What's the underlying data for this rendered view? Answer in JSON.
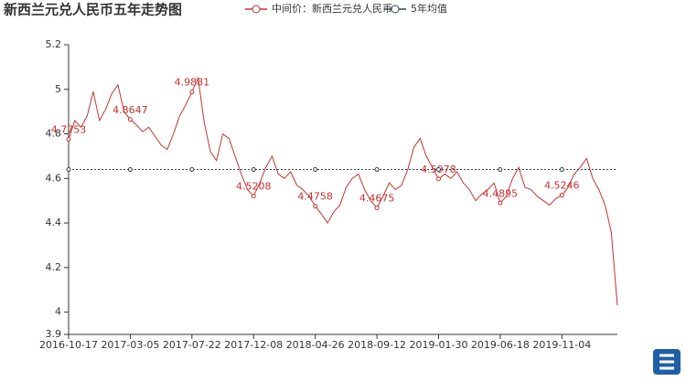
{
  "chart_data": {
    "type": "line",
    "title": "新西兰元兑人民币五年走势图",
    "categories": [
      "2016-10-17",
      null,
      null,
      null,
      null,
      null,
      null,
      null,
      null,
      null,
      "2017-03-05",
      null,
      null,
      null,
      null,
      null,
      null,
      null,
      null,
      null,
      "2017-07-22",
      null,
      null,
      null,
      null,
      null,
      null,
      null,
      null,
      null,
      "2017-12-08",
      null,
      null,
      null,
      null,
      null,
      null,
      null,
      null,
      null,
      "2018-04-26",
      null,
      null,
      null,
      null,
      null,
      null,
      null,
      null,
      null,
      "2018-09-12",
      null,
      null,
      null,
      null,
      null,
      null,
      null,
      null,
      null,
      "2019-01-30",
      null,
      null,
      null,
      null,
      null,
      null,
      null,
      null,
      null,
      "2019-06-18",
      null,
      null,
      null,
      null,
      null,
      null,
      null,
      null,
      null,
      "2019-11-04",
      null,
      null,
      null,
      null,
      null,
      null,
      null,
      null,
      null
    ],
    "series": [
      {
        "name": "中间价：新西兰元兑人民币",
        "color": "#c23531",
        "values": [
          4.7753,
          4.86,
          4.83,
          4.88,
          4.99,
          4.86,
          4.91,
          4.98,
          5.02,
          4.9,
          4.8647,
          4.84,
          4.81,
          4.83,
          4.79,
          4.75,
          4.73,
          4.8,
          4.88,
          4.93,
          4.9881,
          5.05,
          4.85,
          4.72,
          4.68,
          4.8,
          4.78,
          4.7,
          4.62,
          4.55,
          4.5208,
          4.58,
          4.65,
          4.7,
          4.62,
          4.6,
          4.63,
          4.57,
          4.55,
          4.52,
          4.4758,
          4.44,
          4.4,
          4.45,
          4.48,
          4.56,
          4.6,
          4.62,
          4.55,
          4.5,
          4.4675,
          4.52,
          4.58,
          4.55,
          4.57,
          4.64,
          4.74,
          4.78,
          4.7,
          4.65,
          4.5978,
          4.62,
          4.6,
          4.63,
          4.58,
          4.55,
          4.5,
          4.53,
          4.55,
          4.58,
          4.4895,
          4.52,
          4.6,
          4.65,
          4.56,
          4.55,
          4.52,
          4.5,
          4.48,
          4.51,
          4.5246,
          4.56,
          4.62,
          4.65,
          4.69,
          4.6,
          4.55,
          4.48,
          4.36,
          4.03
        ]
      },
      {
        "name": "5年均值",
        "color": "#2f4554",
        "values": [
          4.64,
          4.64,
          4.64,
          4.64,
          4.64,
          4.64,
          4.64,
          4.64,
          4.64,
          4.64,
          4.64,
          4.64,
          4.64,
          4.64,
          4.64,
          4.64,
          4.64,
          4.64,
          4.64,
          4.64,
          4.64,
          4.64,
          4.64,
          4.64,
          4.64,
          4.64,
          4.64,
          4.64,
          4.64,
          4.64,
          4.64,
          4.64,
          4.64,
          4.64,
          4.64,
          4.64,
          4.64,
          4.64,
          4.64,
          4.64,
          4.64,
          4.64,
          4.64,
          4.64,
          4.64,
          4.64,
          4.64,
          4.64,
          4.64,
          4.64,
          4.64,
          4.64,
          4.64,
          4.64,
          4.64,
          4.64,
          4.64,
          4.64,
          4.64,
          4.64,
          4.64,
          4.64,
          4.64,
          4.64,
          4.64,
          4.64,
          4.64,
          4.64,
          4.64,
          4.64,
          4.64,
          4.64,
          4.64,
          4.64,
          4.64,
          4.64,
          4.64,
          4.64,
          4.64,
          4.64,
          4.64,
          4.64,
          4.64,
          4.64,
          4.64,
          4.64,
          4.64,
          4.64,
          4.64,
          4.64
        ]
      }
    ],
    "ylim": [
      3.9,
      5.2
    ],
    "yticks": [
      3.9,
      4,
      4.2,
      4.4,
      4.6,
      4.8,
      5,
      5.2
    ],
    "grid": false
  }
}
